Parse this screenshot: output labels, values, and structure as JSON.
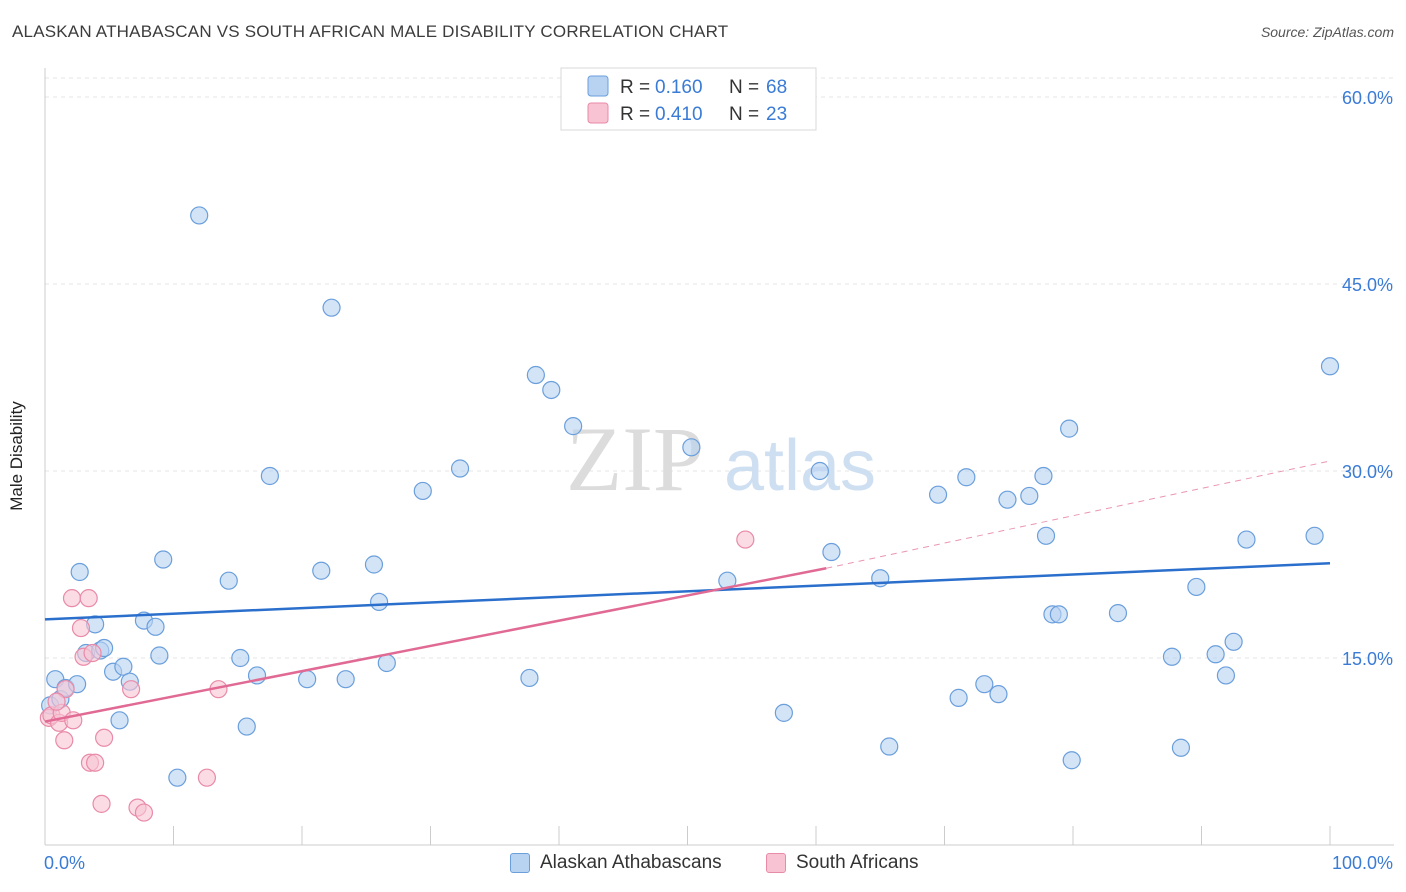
{
  "header": {
    "title": "ALASKAN ATHABASCAN VS SOUTH AFRICAN MALE DISABILITY CORRELATION CHART",
    "source": "Source: ZipAtlas.com"
  },
  "watermark": {
    "zip": "ZIP",
    "atlas": "atlas"
  },
  "legend_top": [
    {
      "r_label": "R =",
      "r_value": "0.160",
      "n_label": "N =",
      "n_value": "68"
    },
    {
      "r_label": "R =",
      "r_value": "0.410",
      "n_label": "N =",
      "n_value": "23"
    }
  ],
  "chart_data": {
    "type": "scatter",
    "title": "ALASKAN ATHABASCAN VS SOUTH AFRICAN MALE DISABILITY CORRELATION CHART",
    "xlabel": "",
    "ylabel": "Male Disability",
    "xlim": [
      0,
      100
    ],
    "ylim": [
      0,
      60
    ],
    "x_tick_labels": [
      "0.0%",
      "100.0%"
    ],
    "y_ticks": [
      15,
      30,
      45,
      60
    ],
    "y_tick_labels": [
      "15.0%",
      "30.0%",
      "45.0%",
      "60.0%"
    ],
    "grid": true,
    "legend_position": "top-center",
    "colors": {
      "blue_fill": "#b8d2f2",
      "blue_stroke": "#6a9fdc",
      "blue_line": "#2b6fcc",
      "pink_fill": "#f8c4d4",
      "pink_stroke": "#e98aa8",
      "pink_line": "#e06a94",
      "tick_label": "#3a7bd5"
    },
    "series": [
      {
        "name": "Alaskan Athabascans",
        "r": 0.16,
        "n": 68,
        "trend": {
          "x": [
            0,
            100
          ],
          "y": [
            18.1,
            22.6
          ]
        },
        "points": [
          [
            0.4,
            11.2
          ],
          [
            0.8,
            13.3
          ],
          [
            1.2,
            11.7
          ],
          [
            1.6,
            12.6
          ],
          [
            2.5,
            12.9
          ],
          [
            2.7,
            21.9
          ],
          [
            3.2,
            15.4
          ],
          [
            3.9,
            17.7
          ],
          [
            4.3,
            15.6
          ],
          [
            4.6,
            15.8
          ],
          [
            5.3,
            13.9
          ],
          [
            6.1,
            14.3
          ],
          [
            5.8,
            10.0
          ],
          [
            6.6,
            13.1
          ],
          [
            7.7,
            18.0
          ],
          [
            8.6,
            17.5
          ],
          [
            8.9,
            15.2
          ],
          [
            9.2,
            22.9
          ],
          [
            10.3,
            5.4
          ],
          [
            12.0,
            50.5
          ],
          [
            14.3,
            21.2
          ],
          [
            15.2,
            15.0
          ],
          [
            15.7,
            9.5
          ],
          [
            16.5,
            13.6
          ],
          [
            17.5,
            29.6
          ],
          [
            20.4,
            13.3
          ],
          [
            21.5,
            22.0
          ],
          [
            22.3,
            43.1
          ],
          [
            23.4,
            13.3
          ],
          [
            25.6,
            22.5
          ],
          [
            26.0,
            19.5
          ],
          [
            26.6,
            14.6
          ],
          [
            29.4,
            28.4
          ],
          [
            32.3,
            30.2
          ],
          [
            37.7,
            13.4
          ],
          [
            38.2,
            37.7
          ],
          [
            39.4,
            36.5
          ],
          [
            41.1,
            33.6
          ],
          [
            50.3,
            31.9
          ],
          [
            53.1,
            21.2
          ],
          [
            57.5,
            10.6
          ],
          [
            60.3,
            30.0
          ],
          [
            61.2,
            23.5
          ],
          [
            65.0,
            21.4
          ],
          [
            65.7,
            7.9
          ],
          [
            69.5,
            28.1
          ],
          [
            71.1,
            11.8
          ],
          [
            71.7,
            29.5
          ],
          [
            73.1,
            12.9
          ],
          [
            74.2,
            12.1
          ],
          [
            74.9,
            27.7
          ],
          [
            76.6,
            28.0
          ],
          [
            77.7,
            29.6
          ],
          [
            77.9,
            24.8
          ],
          [
            78.4,
            18.5
          ],
          [
            78.9,
            18.5
          ],
          [
            79.7,
            33.4
          ],
          [
            79.9,
            6.8
          ],
          [
            83.5,
            18.6
          ],
          [
            87.7,
            15.1
          ],
          [
            88.4,
            7.8
          ],
          [
            89.6,
            20.7
          ],
          [
            91.1,
            15.3
          ],
          [
            91.9,
            13.6
          ],
          [
            92.5,
            16.3
          ],
          [
            93.5,
            24.5
          ],
          [
            98.8,
            24.8
          ],
          [
            100.0,
            38.4
          ]
        ]
      },
      {
        "name": "South Africans",
        "r": 0.41,
        "n": 23,
        "trend": {
          "x": [
            0,
            60.8
          ],
          "y": [
            9.9,
            22.2
          ]
        },
        "trend_dashed": {
          "x": [
            60.8,
            100
          ],
          "y": [
            22.2,
            30.8
          ]
        },
        "points": [
          [
            0.3,
            10.2
          ],
          [
            0.5,
            10.4
          ],
          [
            1.1,
            9.8
          ],
          [
            1.3,
            10.6
          ],
          [
            1.5,
            8.4
          ],
          [
            1.6,
            12.5
          ],
          [
            2.2,
            10.0
          ],
          [
            2.8,
            17.4
          ],
          [
            3.0,
            15.1
          ],
          [
            2.1,
            19.8
          ],
          [
            3.4,
            19.8
          ],
          [
            3.5,
            6.6
          ],
          [
            3.9,
            6.6
          ],
          [
            4.6,
            8.6
          ],
          [
            4.4,
            3.3
          ],
          [
            3.7,
            15.4
          ],
          [
            6.7,
            12.5
          ],
          [
            7.2,
            3.0
          ],
          [
            7.7,
            2.6
          ],
          [
            12.6,
            5.4
          ],
          [
            13.5,
            12.5
          ],
          [
            54.5,
            24.5
          ],
          [
            0.9,
            11.5
          ]
        ]
      }
    ]
  },
  "legend_bottom": [
    {
      "label": "Alaskan Athabascans"
    },
    {
      "label": "South Africans"
    }
  ]
}
